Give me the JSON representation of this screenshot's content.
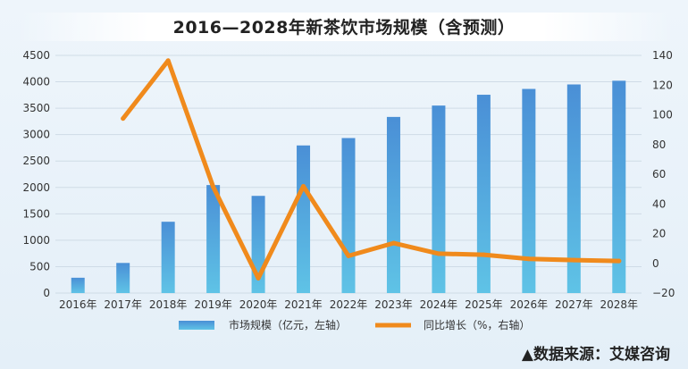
{
  "title": "2016—2028年新茶饮市场规模（含预测）",
  "source": "▲数据来源：艾媒咨询",
  "chart_data": {
    "type": "bar",
    "categories": [
      "2016年",
      "2017年",
      "2018年",
      "2019年",
      "2020年",
      "2021年",
      "2022年",
      "2023年",
      "2024年",
      "2025年",
      "2026年",
      "2027年",
      "2028年"
    ],
    "series": [
      {
        "name": "市场规模（亿元，左轴）",
        "type": "bar",
        "axis": "left",
        "values": [
          290,
          570,
          1350,
          2045,
          1840,
          2795,
          2935,
          3335,
          3550,
          3755,
          3865,
          3950,
          4020
        ]
      },
      {
        "name": "同比增长（%，右轴）",
        "type": "line",
        "axis": "right",
        "values": [
          null,
          97.5,
          136.5,
          51.5,
          -10.0,
          51.9,
          5.0,
          13.6,
          6.5,
          5.8,
          3.0,
          2.2,
          1.6
        ]
      }
    ],
    "yleft": {
      "ticks": [
        "0",
        "500",
        "1000",
        "1500",
        "2000",
        "2500",
        "3000",
        "3500",
        "4000",
        "4500"
      ],
      "ylim": [
        0,
        4500
      ]
    },
    "yright": {
      "ticks": [
        "−20",
        "0",
        "20",
        "40",
        "60",
        "80",
        "100",
        "120",
        "140"
      ],
      "ylim": [
        -20,
        140
      ]
    },
    "grid": true,
    "legend_position": "bottom",
    "colors": {
      "bar_top": "#4a8fd6",
      "bar_bottom": "#5fc3e6",
      "line": "#f08a1c"
    }
  }
}
